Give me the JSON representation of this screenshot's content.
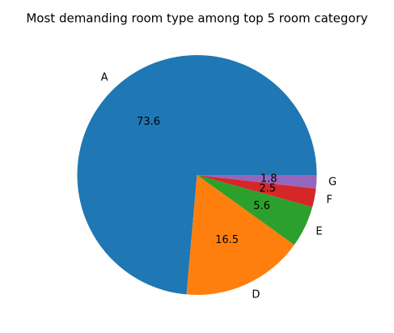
{
  "chart_data": {
    "type": "pie",
    "title": "Most demanding room type among top 5 room category",
    "slices": [
      {
        "label": "A",
        "value": 73.6,
        "display": "73.6",
        "color": "#1f77b4"
      },
      {
        "label": "D",
        "value": 16.5,
        "display": "16.5",
        "color": "#ff7f0e"
      },
      {
        "label": "E",
        "value": 5.6,
        "display": "5.6",
        "color": "#2ca02c"
      },
      {
        "label": "F",
        "value": 2.5,
        "display": "2.5",
        "color": "#d62728"
      },
      {
        "label": "G",
        "value": 1.8,
        "display": "1.8",
        "color": "#9467bd"
      }
    ],
    "start_angle_deg": 0,
    "direction": "counterclockwise"
  }
}
